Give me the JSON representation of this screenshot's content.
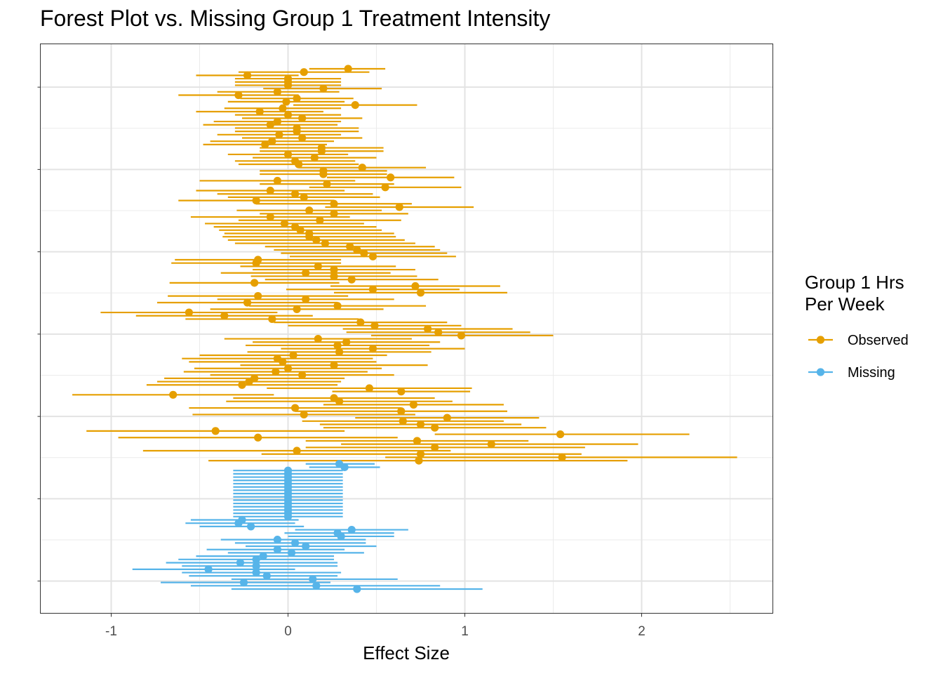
{
  "chart_data": {
    "type": "forest",
    "title": "Forest Plot vs. Missing Group 1 Treatment Intensity",
    "xlabel": "Effect Size",
    "ylabel": "",
    "xlim": [
      -1.4,
      2.75
    ],
    "x_ticks": [
      -1,
      0,
      1,
      2
    ],
    "x_tick_labels": [
      "-1",
      "0",
      "1",
      "2"
    ],
    "grid": true,
    "legend": {
      "title_lines": [
        "Group 1 Hrs",
        "Per Week"
      ],
      "position": "right",
      "entries": [
        {
          "label": "Observed",
          "color": "#E69F00"
        },
        {
          "label": "Missing",
          "color": "#56B4E9"
        }
      ]
    },
    "series": [
      {
        "name": "Observed",
        "color": "#E69F00",
        "estimates": [
          0.34,
          0.09,
          -0.23,
          0.0,
          0.0,
          0.0,
          0.2,
          -0.06,
          -0.28,
          0.05,
          -0.01,
          0.38,
          -0.03,
          -0.16,
          0.0,
          0.08,
          -0.06,
          -0.1,
          0.05,
          0.05,
          -0.05,
          0.08,
          -0.09,
          -0.13,
          0.19,
          0.19,
          0.0,
          0.15,
          0.04,
          0.06,
          0.42,
          0.2,
          0.2,
          0.58,
          -0.06,
          0.22,
          0.55,
          -0.1,
          0.04,
          0.09,
          -0.18,
          0.26,
          0.63,
          0.12,
          0.26,
          -0.1,
          0.18,
          -0.02,
          0.04,
          0.07,
          0.12,
          0.12,
          0.16,
          0.21,
          0.35,
          0.39,
          0.43,
          0.48,
          -0.17,
          -0.18,
          0.17,
          0.26,
          0.1,
          0.26,
          0.36,
          -0.19,
          0.72,
          0.48,
          0.75,
          -0.17,
          0.1,
          -0.23,
          0.28,
          0.05,
          -0.56,
          -0.36,
          -0.09,
          0.41,
          0.49,
          0.79,
          0.85,
          0.98,
          0.17,
          0.33,
          0.28,
          0.48,
          0.29,
          0.03,
          -0.06,
          -0.03,
          0.26,
          0.0,
          -0.07,
          0.08,
          -0.19,
          -0.22,
          -0.26,
          0.46,
          0.64,
          -0.65,
          0.26,
          0.29,
          0.71,
          0.04,
          0.64,
          0.09,
          0.9,
          0.65,
          0.75,
          0.83,
          -0.41,
          1.54,
          -0.17,
          0.73,
          1.15,
          0.83,
          0.05,
          0.75,
          1.55,
          0.74
        ],
        "lower": [
          0.12,
          -0.28,
          -0.52,
          -0.3,
          -0.3,
          -0.3,
          -0.14,
          -0.4,
          -0.62,
          -0.27,
          -0.34,
          0.03,
          -0.36,
          -0.52,
          -0.3,
          -0.26,
          -0.42,
          -0.48,
          -0.3,
          -0.3,
          -0.4,
          -0.26,
          -0.44,
          -0.48,
          -0.16,
          -0.16,
          -0.34,
          -0.2,
          -0.3,
          -0.28,
          0.06,
          -0.16,
          -0.16,
          0.22,
          -0.5,
          -0.16,
          0.12,
          -0.52,
          -0.4,
          -0.34,
          -0.62,
          -0.18,
          0.21,
          -0.29,
          -0.16,
          -0.55,
          -0.28,
          -0.47,
          -0.42,
          -0.39,
          -0.36,
          -0.37,
          -0.34,
          -0.3,
          -0.13,
          -0.08,
          -0.04,
          0.01,
          -0.64,
          -0.66,
          -0.27,
          -0.2,
          -0.38,
          -0.21,
          -0.13,
          -0.67,
          0.24,
          -0.01,
          0.26,
          -0.68,
          -0.4,
          -0.74,
          -0.22,
          -0.44,
          -1.06,
          -0.86,
          -0.58,
          -0.08,
          0.0,
          0.31,
          0.33,
          0.47,
          -0.36,
          -0.2,
          -0.24,
          -0.04,
          -0.23,
          -0.5,
          -0.6,
          -0.56,
          -0.27,
          -0.53,
          -0.59,
          -0.44,
          -0.7,
          -0.74,
          -0.8,
          -0.12,
          0.25,
          -1.22,
          -0.31,
          -0.35,
          0.2,
          -0.56,
          0.04,
          -0.54,
          0.38,
          0.08,
          0.18,
          0.2,
          -1.14,
          0.83,
          -0.96,
          0.1,
          0.3,
          0.1,
          -0.82,
          -0.15,
          0.55,
          -0.45
        ],
        "upper": [
          0.55,
          0.46,
          0.06,
          0.3,
          0.3,
          0.3,
          0.53,
          0.29,
          0.06,
          0.37,
          0.32,
          0.73,
          0.3,
          0.2,
          0.3,
          0.42,
          0.3,
          0.28,
          0.4,
          0.4,
          0.3,
          0.42,
          0.26,
          0.22,
          0.54,
          0.54,
          0.34,
          0.5,
          0.38,
          0.4,
          0.78,
          0.56,
          0.56,
          0.94,
          0.38,
          0.6,
          0.98,
          0.32,
          0.48,
          0.52,
          0.26,
          0.7,
          1.05,
          0.53,
          0.68,
          0.35,
          0.64,
          0.43,
          0.5,
          0.53,
          0.6,
          0.61,
          0.66,
          0.72,
          0.83,
          0.86,
          0.9,
          0.95,
          0.3,
          0.3,
          0.61,
          0.72,
          0.58,
          0.73,
          0.85,
          0.29,
          1.2,
          0.97,
          1.24,
          0.34,
          0.6,
          0.28,
          0.78,
          0.54,
          -0.06,
          0.14,
          0.4,
          0.9,
          0.98,
          1.27,
          1.37,
          1.5,
          0.7,
          0.86,
          0.8,
          1.0,
          0.81,
          0.56,
          0.48,
          0.5,
          0.79,
          0.53,
          0.45,
          0.6,
          0.32,
          0.3,
          0.28,
          1.04,
          1.03,
          -0.08,
          0.83,
          0.93,
          1.22,
          0.64,
          1.24,
          0.72,
          1.42,
          1.22,
          1.32,
          1.46,
          0.32,
          2.27,
          0.62,
          1.36,
          1.98,
          1.68,
          0.92,
          1.66,
          2.54,
          1.92
        ]
      },
      {
        "name": "Missing",
        "color": "#56B4E9",
        "estimates": [
          0.29,
          0.32,
          0.0,
          0.0,
          0.0,
          0.0,
          0.0,
          0.0,
          0.0,
          0.0,
          0.0,
          0.0,
          0.0,
          0.0,
          0.0,
          0.0,
          0.0,
          -0.26,
          -0.28,
          -0.21,
          0.36,
          0.28,
          0.3,
          -0.06,
          0.04,
          0.1,
          -0.06,
          0.02,
          -0.14,
          -0.18,
          -0.27,
          -0.18,
          -0.45,
          -0.18,
          -0.12,
          0.14,
          -0.25,
          0.16,
          0.39
        ],
        "lower": [
          0.1,
          0.12,
          -0.31,
          -0.31,
          -0.31,
          -0.31,
          -0.31,
          -0.31,
          -0.31,
          -0.31,
          -0.31,
          -0.31,
          -0.31,
          -0.31,
          -0.31,
          -0.31,
          -0.31,
          -0.55,
          -0.58,
          -0.5,
          0.04,
          -0.02,
          0.0,
          -0.38,
          -0.3,
          -0.24,
          -0.46,
          -0.34,
          -0.52,
          -0.62,
          -0.69,
          -0.6,
          -0.88,
          -0.6,
          -0.56,
          -0.32,
          -0.72,
          -0.55,
          -0.32
        ],
        "upper": [
          0.49,
          0.52,
          0.31,
          0.31,
          0.31,
          0.31,
          0.31,
          0.31,
          0.31,
          0.31,
          0.31,
          0.31,
          0.31,
          0.31,
          0.31,
          0.31,
          0.31,
          0.06,
          0.04,
          0.09,
          0.68,
          0.6,
          0.6,
          0.44,
          0.44,
          0.5,
          0.32,
          0.43,
          0.26,
          0.26,
          0.28,
          0.28,
          0.04,
          0.3,
          0.28,
          0.62,
          0.24,
          0.86,
          1.1
        ]
      }
    ]
  }
}
